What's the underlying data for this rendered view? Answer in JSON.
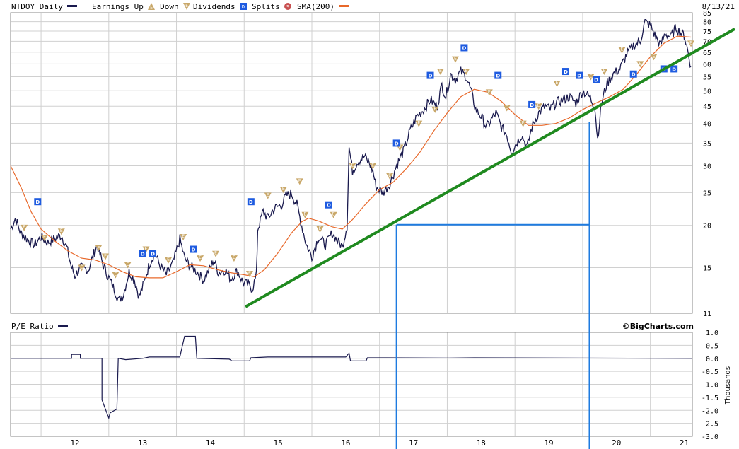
{
  "header": {
    "symbol_label": "NTDOY Daily",
    "earnings_up_label": "Earnings Up",
    "down_label": "Down",
    "dividends_label": "Dividends",
    "splits_label": "Splits",
    "sma_label": "SMA(200)",
    "date": "8/13/21"
  },
  "lower_panel": {
    "title": "P/E Ratio",
    "copyright": "©BigCharts.com"
  },
  "colors": {
    "price": "#1a1a4e",
    "sma": "#e8682a",
    "trendline": "#1f8a1f",
    "guides": "#1e7be0",
    "earnings_badge": "#c9a86a",
    "dividend_badge": "#1e5be0",
    "split_badge": "#c85050",
    "grid": "#d0d0d0"
  },
  "chart_data": [
    {
      "type": "line",
      "name": "price",
      "scale": "log",
      "x_ticks": [
        "12",
        "13",
        "14",
        "15",
        "16",
        "17",
        "18",
        "19",
        "20",
        "21"
      ],
      "y_ticks": [
        11,
        15,
        20,
        25,
        30,
        35,
        40,
        45,
        50,
        55,
        60,
        65,
        70,
        75,
        80,
        85
      ],
      "ylim": [
        11,
        85
      ],
      "xlim": [
        2011.55,
        2021.62
      ],
      "price_points": [
        [
          2011.55,
          19.5
        ],
        [
          2011.62,
          21
        ],
        [
          2011.7,
          19
        ],
        [
          2011.8,
          18.2
        ],
        [
          2011.9,
          17.5
        ],
        [
          2012.0,
          18.5
        ],
        [
          2012.1,
          17.8
        ],
        [
          2012.2,
          18.3
        ],
        [
          2012.3,
          18.7
        ],
        [
          2012.38,
          17.2
        ],
        [
          2012.45,
          15
        ],
        [
          2012.5,
          14.2
        ],
        [
          2012.58,
          15
        ],
        [
          2012.7,
          14.8
        ],
        [
          2012.78,
          16.5
        ],
        [
          2012.83,
          17.5
        ],
        [
          2012.92,
          15.2
        ],
        [
          2013.0,
          14
        ],
        [
          2013.08,
          13
        ],
        [
          2013.15,
          12
        ],
        [
          2013.22,
          12.6
        ],
        [
          2013.3,
          14.6
        ],
        [
          2013.38,
          13.8
        ],
        [
          2013.45,
          12.3
        ],
        [
          2013.52,
          13.5
        ],
        [
          2013.6,
          15.4
        ],
        [
          2013.68,
          16.6
        ],
        [
          2013.75,
          15.3
        ],
        [
          2013.85,
          14.3
        ],
        [
          2013.95,
          15.5
        ],
        [
          2014.05,
          18.2
        ],
        [
          2014.12,
          16
        ],
        [
          2014.2,
          15.2
        ],
        [
          2014.3,
          14.6
        ],
        [
          2014.4,
          13.8
        ],
        [
          2014.5,
          15
        ],
        [
          2014.55,
          15.8
        ],
        [
          2014.62,
          14.5
        ],
        [
          2014.72,
          14.8
        ],
        [
          2014.8,
          13.9
        ],
        [
          2014.9,
          14.7
        ],
        [
          2014.98,
          13.6
        ],
        [
          2015.05,
          13.4
        ],
        [
          2015.12,
          13
        ],
        [
          2015.18,
          14.2
        ],
        [
          2015.2,
          19.5
        ],
        [
          2015.28,
          22
        ],
        [
          2015.35,
          21
        ],
        [
          2015.45,
          22.5
        ],
        [
          2015.55,
          23
        ],
        [
          2015.62,
          24.5
        ],
        [
          2015.7,
          24.8
        ],
        [
          2015.78,
          23
        ],
        [
          2015.85,
          20
        ],
        [
          2015.92,
          17.5
        ],
        [
          2016.0,
          16.2
        ],
        [
          2016.1,
          18.5
        ],
        [
          2016.2,
          17.5
        ],
        [
          2016.3,
          19
        ],
        [
          2016.38,
          18
        ],
        [
          2016.45,
          17.3
        ],
        [
          2016.52,
          20
        ],
        [
          2016.55,
          34
        ],
        [
          2016.6,
          29
        ],
        [
          2016.68,
          31
        ],
        [
          2016.78,
          32
        ],
        [
          2016.85,
          30.5
        ],
        [
          2016.9,
          29
        ],
        [
          2016.95,
          26
        ],
        [
          2017.05,
          25
        ],
        [
          2017.15,
          26.5
        ],
        [
          2017.25,
          30
        ],
        [
          2017.35,
          33
        ],
        [
          2017.45,
          38
        ],
        [
          2017.55,
          42
        ],
        [
          2017.65,
          44
        ],
        [
          2017.75,
          47
        ],
        [
          2017.85,
          45
        ],
        [
          2017.92,
          52
        ],
        [
          2017.98,
          48
        ],
        [
          2018.05,
          56
        ],
        [
          2018.12,
          54
        ],
        [
          2018.2,
          57
        ],
        [
          2018.28,
          55
        ],
        [
          2018.35,
          50
        ],
        [
          2018.42,
          44
        ],
        [
          2018.5,
          42
        ],
        [
          2018.58,
          39
        ],
        [
          2018.65,
          41
        ],
        [
          2018.72,
          43
        ],
        [
          2018.8,
          39
        ],
        [
          2018.88,
          37
        ],
        [
          2018.95,
          33
        ],
        [
          2019.02,
          35
        ],
        [
          2019.1,
          37
        ],
        [
          2019.18,
          34
        ],
        [
          2019.25,
          39
        ],
        [
          2019.35,
          43
        ],
        [
          2019.45,
          45
        ],
        [
          2019.52,
          44
        ],
        [
          2019.6,
          46
        ],
        [
          2019.7,
          47
        ],
        [
          2019.8,
          48
        ],
        [
          2019.9,
          46
        ],
        [
          2020.0,
          50
        ],
        [
          2020.1,
          48
        ],
        [
          2020.18,
          45
        ],
        [
          2020.22,
          36
        ],
        [
          2020.28,
          46
        ],
        [
          2020.35,
          52
        ],
        [
          2020.45,
          56
        ],
        [
          2020.55,
          58
        ],
        [
          2020.65,
          64
        ],
        [
          2020.75,
          68
        ],
        [
          2020.85,
          70
        ],
        [
          2020.92,
          80
        ],
        [
          2021.0,
          78
        ],
        [
          2021.08,
          72
        ],
        [
          2021.15,
          68
        ],
        [
          2021.22,
          74
        ],
        [
          2021.3,
          72
        ],
        [
          2021.38,
          77
        ],
        [
          2021.45,
          74
        ],
        [
          2021.5,
          73
        ],
        [
          2021.55,
          66
        ],
        [
          2021.6,
          59
        ]
      ],
      "sma_points": [
        [
          2011.55,
          30
        ],
        [
          2011.7,
          26
        ],
        [
          2011.85,
          22
        ],
        [
          2012.0,
          19.5
        ],
        [
          2012.2,
          18
        ],
        [
          2012.4,
          16.8
        ],
        [
          2012.6,
          16
        ],
        [
          2012.8,
          15.8
        ],
        [
          2013.0,
          15.3
        ],
        [
          2013.2,
          14.6
        ],
        [
          2013.4,
          14.1
        ],
        [
          2013.6,
          14
        ],
        [
          2013.8,
          14
        ],
        [
          2014.0,
          14.6
        ],
        [
          2014.2,
          15.3
        ],
        [
          2014.4,
          15.2
        ],
        [
          2014.6,
          14.8
        ],
        [
          2014.8,
          14.5
        ],
        [
          2015.0,
          14.3
        ],
        [
          2015.15,
          14.1
        ],
        [
          2015.3,
          14.8
        ],
        [
          2015.5,
          16.6
        ],
        [
          2015.7,
          19
        ],
        [
          2015.85,
          20.5
        ],
        [
          2015.95,
          21
        ],
        [
          2016.1,
          20.6
        ],
        [
          2016.3,
          19.8
        ],
        [
          2016.45,
          19.5
        ],
        [
          2016.6,
          20.8
        ],
        [
          2016.8,
          23.2
        ],
        [
          2017.0,
          25.5
        ],
        [
          2017.2,
          26.8
        ],
        [
          2017.4,
          29.5
        ],
        [
          2017.6,
          33
        ],
        [
          2017.8,
          38
        ],
        [
          2018.0,
          43
        ],
        [
          2018.2,
          48
        ],
        [
          2018.4,
          50.5
        ],
        [
          2018.6,
          49.5
        ],
        [
          2018.8,
          46.5
        ],
        [
          2019.0,
          42.5
        ],
        [
          2019.2,
          39.5
        ],
        [
          2019.4,
          39.5
        ],
        [
          2019.6,
          40
        ],
        [
          2019.8,
          41.5
        ],
        [
          2020.0,
          44
        ],
        [
          2020.2,
          46
        ],
        [
          2020.4,
          48
        ],
        [
          2020.6,
          50.5
        ],
        [
          2020.8,
          56
        ],
        [
          2021.0,
          63
        ],
        [
          2021.2,
          69
        ],
        [
          2021.4,
          72.5
        ],
        [
          2021.6,
          72
        ]
      ],
      "trendline": [
        [
          2015.02,
          11.5
        ],
        [
          2021.62,
          67.5
        ]
      ],
      "guide_lines": {
        "x1": 2017.25,
        "x2": 2020.1,
        "y_level": 20.1,
        "y2_top": 40.5
      },
      "earnings_markers": [
        [
          2011.75,
          19.7
        ],
        [
          2012.05,
          18.4
        ],
        [
          2012.3,
          19.2
        ],
        [
          2012.6,
          15
        ],
        [
          2012.85,
          17.2
        ],
        [
          2012.95,
          16.2
        ],
        [
          2013.1,
          14.3
        ],
        [
          2013.28,
          15.3
        ],
        [
          2013.55,
          17
        ],
        [
          2013.88,
          15.8
        ],
        [
          2014.1,
          18.5
        ],
        [
          2014.35,
          16
        ],
        [
          2014.58,
          16.5
        ],
        [
          2014.85,
          16
        ],
        [
          2015.08,
          14.4
        ],
        [
          2015.35,
          24.5
        ],
        [
          2015.58,
          25.5
        ],
        [
          2015.82,
          27
        ],
        [
          2015.9,
          21.5
        ],
        [
          2016.12,
          19.5
        ],
        [
          2016.32,
          21.5
        ],
        [
          2016.6,
          30
        ],
        [
          2016.9,
          30
        ],
        [
          2017.15,
          28
        ],
        [
          2017.3,
          34
        ],
        [
          2017.58,
          40
        ],
        [
          2017.82,
          44
        ],
        [
          2017.9,
          57
        ],
        [
          2018.12,
          62
        ],
        [
          2018.28,
          57
        ],
        [
          2018.62,
          49.5
        ],
        [
          2018.88,
          44.5
        ],
        [
          2019.12,
          40
        ],
        [
          2019.35,
          45
        ],
        [
          2019.62,
          52.5
        ],
        [
          2020.12,
          55
        ],
        [
          2020.32,
          57
        ],
        [
          2020.58,
          66
        ],
        [
          2020.85,
          60
        ],
        [
          2021.05,
          63
        ],
        [
          2021.6,
          69
        ]
      ],
      "dividend_markers": [
        [
          2011.95,
          23.5
        ],
        [
          2013.5,
          16.5
        ],
        [
          2013.65,
          16.5
        ],
        [
          2014.25,
          17
        ],
        [
          2015.1,
          23.5
        ],
        [
          2016.25,
          23
        ],
        [
          2017.25,
          35
        ],
        [
          2017.75,
          55.5
        ],
        [
          2018.25,
          67
        ],
        [
          2018.75,
          55.5
        ],
        [
          2019.25,
          45.5
        ],
        [
          2019.75,
          57
        ],
        [
          2019.95,
          55.5
        ],
        [
          2020.2,
          54
        ],
        [
          2020.75,
          56
        ],
        [
          2021.2,
          58
        ],
        [
          2021.35,
          58
        ]
      ]
    },
    {
      "type": "line",
      "name": "P/E Ratio",
      "x_ticks": [
        "12",
        "13",
        "14",
        "15",
        "16",
        "17",
        "18",
        "19",
        "20",
        "21"
      ],
      "y_ticks": [
        1.0,
        0.5,
        0.0,
        -0.5,
        -1.0,
        -1.5,
        -2.0,
        -2.5,
        -3.0
      ],
      "ylim": [
        -3.0,
        1.0
      ],
      "ylabel": "Thousands",
      "points": [
        [
          2011.55,
          0.0
        ],
        [
          2012.45,
          0.0
        ],
        [
          2012.45,
          0.15
        ],
        [
          2012.58,
          0.15
        ],
        [
          2012.58,
          0.0
        ],
        [
          2012.9,
          0.0
        ],
        [
          2012.9,
          -1.6
        ],
        [
          2013.0,
          -2.3
        ],
        [
          2013.02,
          -2.1
        ],
        [
          2013.12,
          -1.95
        ],
        [
          2013.14,
          0.0
        ],
        [
          2013.25,
          -0.05
        ],
        [
          2013.5,
          0.0
        ],
        [
          2013.6,
          0.05
        ],
        [
          2014.05,
          0.05
        ],
        [
          2014.12,
          0.85
        ],
        [
          2014.28,
          0.85
        ],
        [
          2014.3,
          0.0
        ],
        [
          2014.78,
          -0.03
        ],
        [
          2014.82,
          -0.1
        ],
        [
          2015.08,
          -0.1
        ],
        [
          2015.1,
          0.02
        ],
        [
          2015.35,
          0.05
        ],
        [
          2016.0,
          0.05
        ],
        [
          2016.5,
          0.05
        ],
        [
          2016.55,
          0.2
        ],
        [
          2016.57,
          -0.1
        ],
        [
          2016.8,
          -0.1
        ],
        [
          2016.82,
          0.02
        ],
        [
          2017.1,
          0.02
        ],
        [
          2018.0,
          0.01
        ],
        [
          2018.4,
          0.02
        ],
        [
          2021.62,
          0.0
        ]
      ]
    }
  ]
}
